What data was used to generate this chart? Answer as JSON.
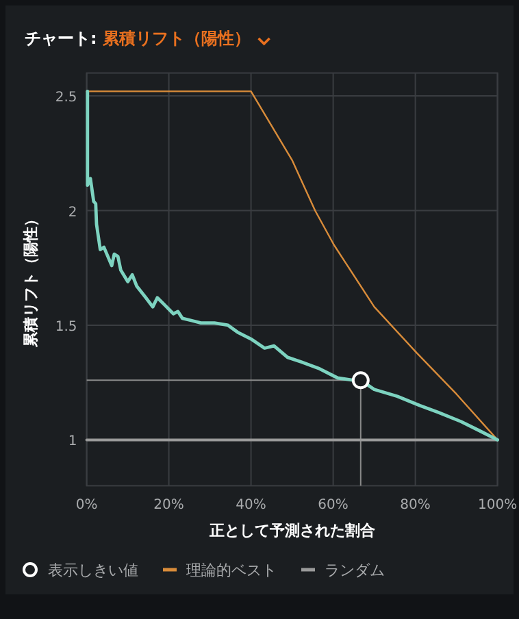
{
  "chart_data": {
    "type": "line",
    "title": "チャート:",
    "subtitle": "累積リフト（陽性）",
    "xlabel": "正として予測された割合",
    "ylabel": "累積リフト（陽性）",
    "xlim": [
      0,
      100
    ],
    "ylim": [
      0.8,
      2.6
    ],
    "xticks": [
      {
        "value": 0,
        "label": "0%"
      },
      {
        "value": 20,
        "label": "20%"
      },
      {
        "value": 40,
        "label": "40%"
      },
      {
        "value": 60,
        "label": "60%"
      },
      {
        "value": 80,
        "label": "80%"
      },
      {
        "value": 100,
        "label": "100%"
      }
    ],
    "yticks": [
      1,
      1.5,
      2,
      2.5
    ],
    "grid": true,
    "legend": "bottom",
    "ref_lines": [
      {
        "axis": "y",
        "value": 1.26,
        "color": "#8a8a8a"
      },
      {
        "axis": "x",
        "value": 66.7,
        "color": "#8a8a8a"
      }
    ],
    "series": [
      {
        "color": "#7dd3c0",
        "x": [
          0.2,
          0.2,
          0.9,
          1.7,
          2.2,
          2.4,
          3.3,
          4.2,
          6.1,
          6.7,
          7.6,
          8.3,
          10,
          11.1,
          12.2,
          14.4,
          16.1,
          17.2,
          18.9,
          21.1,
          22.2,
          23.3,
          25.6,
          27.8,
          31.1,
          34.4,
          36.7,
          40,
          43.3,
          45.6,
          48.9,
          52.2,
          56.7,
          61.1,
          65,
          66.7,
          70,
          75.6,
          81.1,
          85.6,
          91.1,
          95.6,
          100
        ],
        "values": [
          2.52,
          2.11,
          2.14,
          2.04,
          2.03,
          1.94,
          1.83,
          1.84,
          1.76,
          1.81,
          1.8,
          1.74,
          1.69,
          1.72,
          1.67,
          1.62,
          1.58,
          1.62,
          1.59,
          1.55,
          1.56,
          1.53,
          1.52,
          1.51,
          1.51,
          1.5,
          1.47,
          1.44,
          1.4,
          1.41,
          1.36,
          1.34,
          1.31,
          1.27,
          1.26,
          1.26,
          1.22,
          1.19,
          1.15,
          1.12,
          1.08,
          1.04,
          1.0
        ]
      },
      {
        "name": "表示しきい値",
        "type": "scatter",
        "marker": "circle",
        "color": "#ffffff",
        "x": [
          66.7
        ],
        "values": [
          1.26
        ]
      },
      {
        "name": "理論的ベスト",
        "color": "#d98c3a",
        "x": [
          0,
          40,
          50,
          55.6,
          60.2,
          70,
          80.3,
          90,
          100
        ],
        "values": [
          2.52,
          2.52,
          2.22,
          2.0,
          1.85,
          1.58,
          1.38,
          1.2,
          1.0
        ]
      },
      {
        "name": "ランダム",
        "color": "#9a9a9a",
        "x": [
          0,
          100
        ],
        "values": [
          1.0,
          1.0
        ]
      }
    ]
  }
}
